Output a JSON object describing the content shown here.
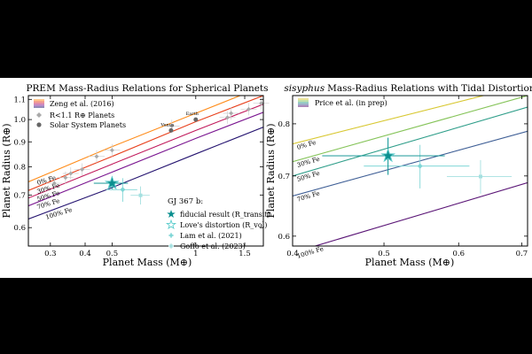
{
  "chart_data": [
    {
      "type": "line",
      "title": "PREM Mass-Radius Relations for Spherical Planets",
      "xlabel": "Planet Mass (M⊕)",
      "ylabel": "Planet Radius (R⊕)",
      "x_scale": "log",
      "y_scale": "log",
      "xlim": [
        0.25,
        1.75
      ],
      "ylim": [
        0.55,
        1.12
      ],
      "x_ticks": [
        {
          "v": 0.3,
          "label": "0.3"
        },
        {
          "v": 0.4,
          "label": "0.4"
        },
        {
          "v": 0.5,
          "label": "0.5"
        },
        {
          "v": 1.0,
          "label": "1"
        },
        {
          "v": 1.5,
          "label": "1.5"
        }
      ],
      "y_ticks": [
        {
          "v": 0.6,
          "label": "0.6"
        },
        {
          "v": 0.7,
          "label": "0.7"
        },
        {
          "v": 0.8,
          "label": "0.8"
        },
        {
          "v": 0.9,
          "label": "0.9"
        },
        {
          "v": 1.0,
          "label": "1.0"
        },
        {
          "v": 1.1,
          "label": "1.1"
        }
      ],
      "series": [
        {
          "name": "0% Fe",
          "color": "#ff8c1a",
          "x": [
            0.25,
            0.5,
            1.0,
            1.75
          ],
          "y": [
            0.745,
            0.88,
            1.03,
            1.17
          ]
        },
        {
          "name": "30% Fe",
          "color": "#e8401c",
          "x": [
            0.25,
            0.5,
            1.0,
            1.75
          ],
          "y": [
            0.715,
            0.84,
            0.99,
            1.12
          ]
        },
        {
          "name": "50% Fe",
          "color": "#c0185a",
          "x": [
            0.25,
            0.5,
            1.0,
            1.75
          ],
          "y": [
            0.69,
            0.81,
            0.95,
            1.075
          ]
        },
        {
          "name": "70% Fe",
          "color": "#7a1590",
          "x": [
            0.25,
            0.5,
            1.0,
            1.75
          ],
          "y": [
            0.665,
            0.78,
            0.915,
            1.035
          ]
        },
        {
          "name": "100% Fe",
          "color": "#251470",
          "x": [
            0.25,
            0.5,
            1.0,
            1.75
          ],
          "y": [
            0.625,
            0.725,
            0.85,
            0.965
          ]
        }
      ],
      "curve_labels": [
        "0% Fe",
        "30% Fe",
        "50% Fe",
        "70% Fe",
        "100% Fe"
      ],
      "exoplanets": [
        {
          "name": "",
          "x": 0.31,
          "y": 0.74
        },
        {
          "name": "",
          "x": 0.34,
          "y": 0.76
        },
        {
          "name": "",
          "x": 0.355,
          "y": 0.775
        },
        {
          "name": "",
          "x": 0.39,
          "y": 0.79
        },
        {
          "name": "",
          "x": 0.44,
          "y": 0.84
        },
        {
          "name": "",
          "x": 0.5,
          "y": 0.865
        },
        {
          "name": "",
          "x": 0.82,
          "y": 0.97
        },
        {
          "name": "",
          "x": 1.3,
          "y": 1.01
        },
        {
          "name": "",
          "x": 1.34,
          "y": 1.03
        },
        {
          "name": "",
          "x": 1.55,
          "y": 1.05
        },
        {
          "name": "",
          "x": 1.72,
          "y": 1.08
        }
      ],
      "solar_system": [
        {
          "name": "Venus",
          "x": 0.815,
          "y": 0.95
        },
        {
          "name": "Earth",
          "x": 1.0,
          "y": 1.0
        }
      ],
      "gj367b": [
        {
          "name": "fiducial result (R_transit)",
          "x": 0.5,
          "y": 0.74,
          "xerr": 0.07,
          "yerr": 0.02,
          "color": "#0b8f8f"
        },
        {
          "name": "Love's distortion (R_vol)",
          "x": 0.5,
          "y": 0.74,
          "xerr": 0.07,
          "yerr": 0.02,
          "color": "#5ccccc"
        },
        {
          "name": "Lam et al. (2021)",
          "x": 0.546,
          "y": 0.718,
          "xerr": 0.07,
          "yerr": 0.04,
          "color": "#7fd6d6"
        },
        {
          "name": "Goffo et al. (2023)",
          "x": 0.633,
          "y": 0.699,
          "xerr": 0.05,
          "yerr": 0.03,
          "color": "#a5e0e0"
        }
      ],
      "legend_upper": [
        "Zeng et al. (2016)",
        "R<1.1 R⊕ Planets",
        "Solar System Planets"
      ],
      "legend_lower_title": "GJ 367 b:",
      "legend_lower": [
        "fiducial result (R_transit)",
        "Love's distortion (R_vol)",
        "Lam et al. (2021)",
        "Goffo et al. (2023)"
      ]
    },
    {
      "type": "line",
      "title_italic": "sisyphus",
      "title_rest": "Mass-Radius Relations with Tidal Distortion",
      "xlabel": "Planet Mass (M⊕)",
      "ylabel": "Planet Radius (R⊕)",
      "x_scale": "log",
      "y_scale": "log",
      "xlim": [
        0.4,
        0.71
      ],
      "ylim": [
        0.585,
        0.86
      ],
      "x_ticks": [
        {
          "v": 0.4,
          "label": "0.4"
        },
        {
          "v": 0.5,
          "label": "0.5"
        },
        {
          "v": 0.6,
          "label": "0.6"
        },
        {
          "v": 0.7,
          "label": "0.7"
        }
      ],
      "y_ticks": [
        {
          "v": 0.6,
          "label": "0.6"
        },
        {
          "v": 0.7,
          "label": "0.7"
        },
        {
          "v": 0.8,
          "label": "0.8"
        }
      ],
      "series": [
        {
          "name": "0% Fe",
          "color": "#d8c832",
          "x": [
            0.4,
            0.71
          ],
          "y": [
            0.76,
            0.885
          ]
        },
        {
          "name": "30% Fe",
          "color": "#86c45a",
          "x": [
            0.4,
            0.71
          ],
          "y": [
            0.726,
            0.86
          ]
        },
        {
          "name": "50% Fe",
          "color": "#2f9e8a",
          "x": [
            0.4,
            0.71
          ],
          "y": [
            0.7,
            0.835
          ]
        },
        {
          "name": "70% Fe",
          "color": "#3f5f96",
          "x": [
            0.4,
            0.71
          ],
          "y": [
            0.665,
            0.785
          ]
        },
        {
          "name": "100% Fe",
          "color": "#5a1576",
          "x": [
            0.4,
            0.71
          ],
          "y": [
            0.575,
            0.688
          ]
        }
      ],
      "curve_labels": [
        "0% Fe",
        "30% Fe",
        "50% Fe",
        "70% Fe",
        "100% Fe"
      ],
      "gj367b": [
        {
          "name": "fiducial",
          "x": 0.505,
          "y": 0.737,
          "xerr": 0.075,
          "yerr": 0.035,
          "color": "#0b8f8f"
        },
        {
          "name": "Love's distortion",
          "x": 0.505,
          "y": 0.737,
          "xerr": 0.075,
          "yerr": 0.035,
          "color": "#5ccccc"
        },
        {
          "name": "Lam et al. (2021)",
          "x": 0.546,
          "y": 0.718,
          "xerr": 0.07,
          "yerr": 0.04,
          "color": "#7fd6d6"
        },
        {
          "name": "Goffo et al. (2023)",
          "x": 0.633,
          "y": 0.699,
          "xerr": 0.05,
          "yerr": 0.03,
          "color": "#a5e0e0"
        }
      ],
      "legend_upper": [
        "Price et al. (in prep)"
      ]
    }
  ]
}
